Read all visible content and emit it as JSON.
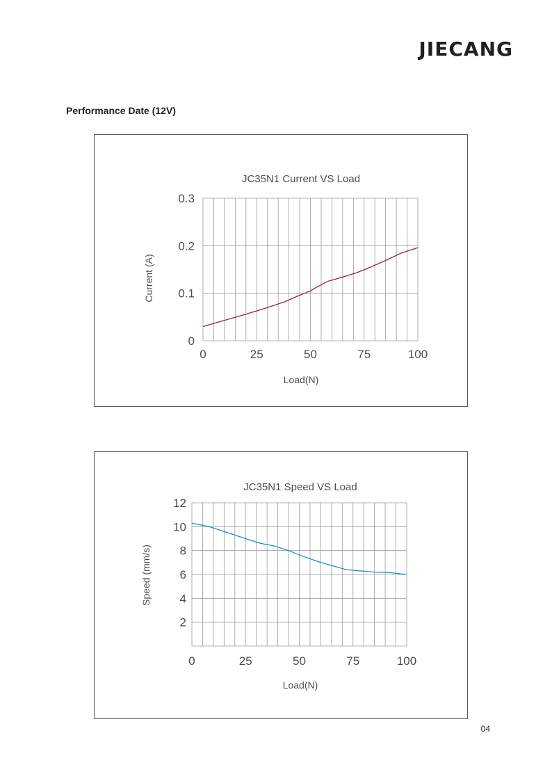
{
  "header": {
    "brand": "JIECANG"
  },
  "section": {
    "title": "Performance Date (12V)"
  },
  "page_number": "04",
  "chart_data": [
    {
      "type": "line",
      "title": "JC35N1 Current VS Load",
      "xlabel": "Load(N)",
      "ylabel": "Current (A)",
      "xlim": [
        0,
        100
      ],
      "ylim": [
        0,
        0.3
      ],
      "xticks": [
        0,
        25,
        50,
        75,
        100
      ],
      "xtick_labels": [
        "0",
        "25",
        "50",
        "75",
        "100"
      ],
      "yticks": [
        0,
        0.1,
        0.2,
        0.3
      ],
      "ytick_labels": [
        "0",
        "0.1",
        "0.2",
        "0.3"
      ],
      "grid": true,
      "color": "#a31f2e",
      "series": [
        {
          "x": [
            0,
            10,
            20,
            30,
            38,
            43,
            50,
            53,
            58,
            65,
            72,
            78,
            85,
            92,
            100
          ],
          "y": [
            0.03,
            0.043,
            0.056,
            0.07,
            0.082,
            0.092,
            0.105,
            0.113,
            0.125,
            0.134,
            0.144,
            0.155,
            0.169,
            0.184,
            0.196
          ]
        }
      ]
    },
    {
      "type": "line",
      "title": "JC35N1 Speed VS Load",
      "xlabel": "Load(N)",
      "ylabel": "Speed (mm/s)",
      "xlim": [
        0,
        100
      ],
      "ylim": [
        0,
        12
      ],
      "xticks": [
        0,
        25,
        50,
        75,
        100
      ],
      "xtick_labels": [
        "0",
        "25",
        "50",
        "75",
        "100"
      ],
      "yticks": [
        2,
        4,
        6,
        8,
        10,
        12
      ],
      "ytick_labels": [
        "2",
        "4",
        "6",
        "8",
        "10",
        "12"
      ],
      "grid": true,
      "color": "#1f8fbf",
      "series": [
        {
          "x": [
            0,
            8,
            15,
            25,
            32,
            38,
            45,
            52,
            60,
            68,
            72,
            78,
            85,
            92,
            100
          ],
          "y": [
            10.3,
            10.0,
            9.6,
            9.0,
            8.6,
            8.4,
            8.0,
            7.5,
            7.0,
            6.6,
            6.4,
            6.3,
            6.2,
            6.15,
            6.0
          ]
        }
      ]
    }
  ]
}
